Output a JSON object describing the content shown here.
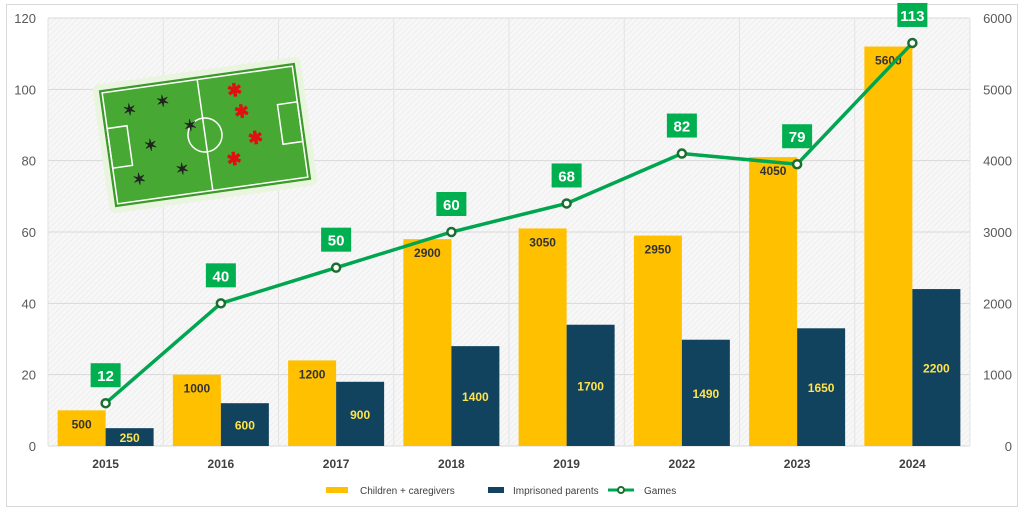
{
  "chart_data": {
    "type": "bar",
    "categories": [
      "2015",
      "2016",
      "2017",
      "2018",
      "2019",
      "2022",
      "2023",
      "2024"
    ],
    "series": [
      {
        "name": "Children + caregivers",
        "type": "bar",
        "axis": "right",
        "color": "#FFC000",
        "values": [
          500,
          1000,
          1200,
          2900,
          3050,
          2950,
          4050,
          5600
        ]
      },
      {
        "name": "Imprisoned parents",
        "type": "bar",
        "axis": "right",
        "color": "#11435F",
        "values": [
          250,
          600,
          900,
          1400,
          1700,
          1490,
          1650,
          2200
        ]
      },
      {
        "name": "Games",
        "type": "line",
        "axis": "left",
        "color": "#00A550",
        "values": [
          12,
          40,
          50,
          60,
          68,
          82,
          79,
          113
        ]
      }
    ],
    "left_axis": {
      "ylim": [
        0,
        120
      ],
      "ticks": [
        0,
        20,
        40,
        60,
        80,
        100,
        120
      ]
    },
    "right_axis": {
      "ylim": [
        0,
        6000
      ],
      "ticks": [
        0,
        1000,
        2000,
        3000,
        4000,
        5000,
        6000
      ]
    },
    "grid": true,
    "legend": "bottom-center",
    "title": "",
    "xlabel": "",
    "ylabel": ""
  }
}
